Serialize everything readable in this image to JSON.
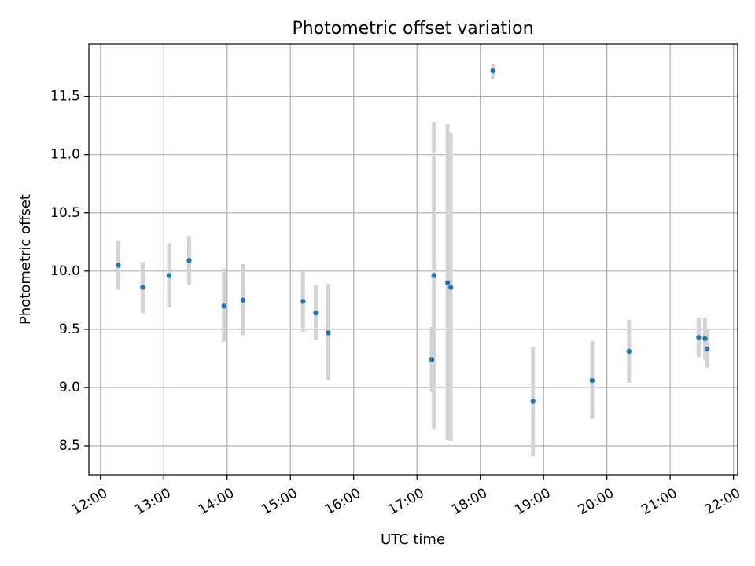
{
  "chart_data": {
    "type": "scatter",
    "title": "Photometric offset variation",
    "xlabel": "UTC time",
    "ylabel": "Photometric offset",
    "x_unit": "hours (UTC)",
    "xlim": [
      "11:49",
      "22:04"
    ],
    "ylim": [
      8.25,
      11.95
    ],
    "x_ticks": [
      {
        "value": "12:00",
        "label": "12:00"
      },
      {
        "value": "13:00",
        "label": "13:00"
      },
      {
        "value": "14:00",
        "label": "14:00"
      },
      {
        "value": "15:00",
        "label": "15:00"
      },
      {
        "value": "16:00",
        "label": "16:00"
      },
      {
        "value": "17:00",
        "label": "17:00"
      },
      {
        "value": "18:00",
        "label": "18:00"
      },
      {
        "value": "19:00",
        "label": "19:00"
      },
      {
        "value": "20:00",
        "label": "20:00"
      },
      {
        "value": "21:00",
        "label": "21:00"
      },
      {
        "value": "22:00",
        "label": "22:00"
      }
    ],
    "y_ticks": [
      {
        "value": 8.5,
        "label": "8.5"
      },
      {
        "value": 9.0,
        "label": "9.0"
      },
      {
        "value": 9.5,
        "label": "9.5"
      },
      {
        "value": 10.0,
        "label": "10.0"
      },
      {
        "value": 10.5,
        "label": "10.5"
      },
      {
        "value": 11.0,
        "label": "11.0"
      },
      {
        "value": 11.5,
        "label": "11.5"
      }
    ],
    "grid": true,
    "point_color": "#1f77b4",
    "errorbar_color": "#d3d3d3",
    "points": [
      {
        "x": "12:17",
        "y": 10.05,
        "ylow": 9.84,
        "yhigh": 10.26
      },
      {
        "x": "12:40",
        "y": 9.86,
        "ylow": 9.64,
        "yhigh": 10.08
      },
      {
        "x": "13:05",
        "y": 9.96,
        "ylow": 9.69,
        "yhigh": 10.24
      },
      {
        "x": "13:24",
        "y": 10.09,
        "ylow": 9.88,
        "yhigh": 10.3
      },
      {
        "x": "13:57",
        "y": 9.7,
        "ylow": 9.39,
        "yhigh": 10.02
      },
      {
        "x": "14:15",
        "y": 9.75,
        "ylow": 9.45,
        "yhigh": 10.06
      },
      {
        "x": "15:12",
        "y": 9.74,
        "ylow": 9.48,
        "yhigh": 10.0
      },
      {
        "x": "15:24",
        "y": 9.64,
        "ylow": 9.41,
        "yhigh": 9.88
      },
      {
        "x": "15:36",
        "y": 9.47,
        "ylow": 9.06,
        "yhigh": 9.89
      },
      {
        "x": "17:14",
        "y": 9.24,
        "ylow": 8.96,
        "yhigh": 9.52
      },
      {
        "x": "17:16",
        "y": 9.96,
        "ylow": 8.64,
        "yhigh": 11.28
      },
      {
        "x": "17:29",
        "y": 9.9,
        "ylow": 8.55,
        "yhigh": 11.26
      },
      {
        "x": "17:32",
        "y": 9.86,
        "ylow": 8.54,
        "yhigh": 11.19
      },
      {
        "x": "18:12",
        "y": 11.72,
        "ylow": 11.65,
        "yhigh": 11.78
      },
      {
        "x": "18:50",
        "y": 8.88,
        "ylow": 8.41,
        "yhigh": 9.35
      },
      {
        "x": "19:46",
        "y": 9.06,
        "ylow": 8.73,
        "yhigh": 9.4
      },
      {
        "x": "20:21",
        "y": 9.31,
        "ylow": 9.04,
        "yhigh": 9.58
      },
      {
        "x": "21:27",
        "y": 9.43,
        "ylow": 9.26,
        "yhigh": 9.6
      },
      {
        "x": "21:33",
        "y": 9.42,
        "ylow": 9.24,
        "yhigh": 9.6
      },
      {
        "x": "21:35",
        "y": 9.33,
        "ylow": 9.17,
        "yhigh": 9.5
      }
    ]
  }
}
